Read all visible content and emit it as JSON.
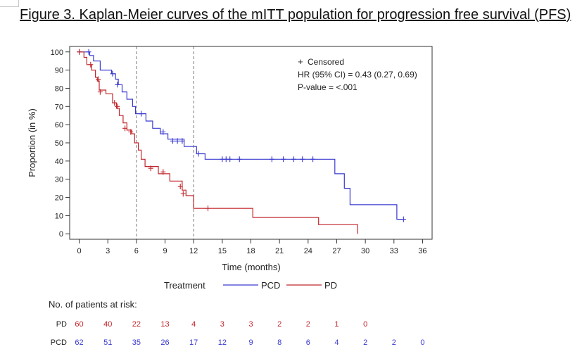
{
  "figure": {
    "title": "Figure 3. Kaplan-Meier curves of the mITT population for progression free survival (PFS)"
  },
  "colors": {
    "PCD": "#3a3ad0",
    "PD": "#c0262c",
    "ref_line": "#909090"
  },
  "chart_data": {
    "type": "line",
    "step": true,
    "xlabel": "Time (months)",
    "ylabel": "Proportion (in %)",
    "xlim": [
      -1,
      37
    ],
    "ylim": [
      -3,
      103
    ],
    "x_ticks": [
      0,
      3,
      6,
      9,
      12,
      15,
      18,
      21,
      24,
      27,
      30,
      33,
      36
    ],
    "y_ticks": [
      0,
      10,
      20,
      30,
      40,
      50,
      60,
      70,
      80,
      90,
      100
    ],
    "reference_lines_x": [
      6,
      12
    ],
    "grid": false,
    "annotations": {
      "censored": "Censored",
      "censor_symbol": "+",
      "hr": "HR (95% CI) = 0.43 (0.27, 0.69)",
      "pvalue": "P-value = <.001"
    },
    "legend": {
      "title": "Treatment",
      "position": "below"
    },
    "series": [
      {
        "name": "PCD",
        "points": [
          [
            0,
            100
          ],
          [
            1.1,
            100
          ],
          [
            1.1,
            98
          ],
          [
            1.5,
            98
          ],
          [
            1.5,
            95
          ],
          [
            2.2,
            95
          ],
          [
            2.2,
            90
          ],
          [
            3.4,
            90
          ],
          [
            3.4,
            88
          ],
          [
            3.8,
            88
          ],
          [
            3.8,
            85
          ],
          [
            4.1,
            85
          ],
          [
            4.1,
            82
          ],
          [
            4.5,
            82
          ],
          [
            4.5,
            78
          ],
          [
            5,
            78
          ],
          [
            5,
            74
          ],
          [
            5.6,
            74
          ],
          [
            5.6,
            70
          ],
          [
            5.9,
            70
          ],
          [
            5.9,
            66
          ],
          [
            7,
            66
          ],
          [
            7,
            62
          ],
          [
            7.7,
            62
          ],
          [
            7.7,
            58
          ],
          [
            8.5,
            58
          ],
          [
            8.5,
            55
          ],
          [
            9.3,
            55
          ],
          [
            9.3,
            52
          ],
          [
            11,
            52
          ],
          [
            11,
            48
          ],
          [
            12.3,
            48
          ],
          [
            12.3,
            44
          ],
          [
            13.2,
            44
          ],
          [
            13.2,
            41
          ],
          [
            26.8,
            41
          ],
          [
            26.8,
            33
          ],
          [
            27.8,
            33
          ],
          [
            27.8,
            25
          ],
          [
            28.4,
            25
          ],
          [
            28.4,
            16
          ],
          [
            33.3,
            16
          ],
          [
            33.3,
            8
          ],
          [
            33.9,
            8
          ]
        ],
        "censored": [
          [
            0,
            100
          ],
          [
            1,
            100
          ],
          [
            3.5,
            88
          ],
          [
            4,
            82
          ],
          [
            6.5,
            66
          ],
          [
            8.8,
            56
          ],
          [
            9.8,
            51
          ],
          [
            10.3,
            51
          ],
          [
            10.8,
            51
          ],
          [
            12.5,
            44
          ],
          [
            15,
            41
          ],
          [
            15.4,
            41
          ],
          [
            15.8,
            41
          ],
          [
            16.8,
            41
          ],
          [
            20.2,
            41
          ],
          [
            21.4,
            41
          ],
          [
            22.5,
            41
          ],
          [
            23.4,
            41
          ],
          [
            24.5,
            41
          ],
          [
            34,
            8
          ]
        ]
      },
      {
        "name": "PD",
        "points": [
          [
            0,
            100
          ],
          [
            0.5,
            100
          ],
          [
            0.5,
            97
          ],
          [
            0.8,
            97
          ],
          [
            0.8,
            93
          ],
          [
            1.3,
            93
          ],
          [
            1.3,
            90
          ],
          [
            1.7,
            90
          ],
          [
            1.7,
            86
          ],
          [
            1.9,
            86
          ],
          [
            1.9,
            84
          ],
          [
            2.1,
            84
          ],
          [
            2.1,
            79
          ],
          [
            2.8,
            79
          ],
          [
            2.8,
            77
          ],
          [
            3.5,
            77
          ],
          [
            3.5,
            72
          ],
          [
            3.9,
            72
          ],
          [
            3.9,
            69
          ],
          [
            4.2,
            69
          ],
          [
            4.2,
            65
          ],
          [
            4.6,
            65
          ],
          [
            4.6,
            61
          ],
          [
            5,
            61
          ],
          [
            5,
            57
          ],
          [
            5.5,
            57
          ],
          [
            5.5,
            55
          ],
          [
            5.8,
            55
          ],
          [
            5.8,
            50
          ],
          [
            6.2,
            50
          ],
          [
            6.2,
            46
          ],
          [
            6.5,
            46
          ],
          [
            6.5,
            41
          ],
          [
            6.9,
            41
          ],
          [
            6.9,
            37
          ],
          [
            8.3,
            37
          ],
          [
            8.3,
            33
          ],
          [
            9.5,
            33
          ],
          [
            9.5,
            29
          ],
          [
            10.8,
            29
          ],
          [
            10.8,
            24
          ],
          [
            11.2,
            24
          ],
          [
            11.2,
            21
          ],
          [
            12,
            21
          ],
          [
            12,
            14
          ],
          [
            18.2,
            14
          ],
          [
            18.2,
            9
          ],
          [
            25.1,
            9
          ],
          [
            25.1,
            5
          ],
          [
            29.2,
            5
          ],
          [
            29.2,
            0
          ]
        ],
        "censored": [
          [
            0,
            100
          ],
          [
            1.2,
            93
          ],
          [
            2,
            85
          ],
          [
            2.2,
            78
          ],
          [
            3.7,
            72
          ],
          [
            4,
            70
          ],
          [
            4.8,
            58
          ],
          [
            5.4,
            56
          ],
          [
            7.5,
            36
          ],
          [
            8.8,
            34
          ],
          [
            10.6,
            26
          ],
          [
            10.9,
            22
          ],
          [
            13.5,
            14
          ]
        ]
      }
    ]
  },
  "risk_table": {
    "title": "No. of patients at risk:",
    "rows": [
      {
        "label": "PD",
        "counts": [
          "60",
          "40",
          "22",
          "13",
          "4",
          "3",
          "3",
          "2",
          "2",
          "1",
          "0"
        ]
      },
      {
        "label": "PCD",
        "counts": [
          "62",
          "51",
          "35",
          "26",
          "17",
          "12",
          "9",
          "8",
          "6",
          "4",
          "2",
          "2",
          "0"
        ]
      }
    ]
  }
}
